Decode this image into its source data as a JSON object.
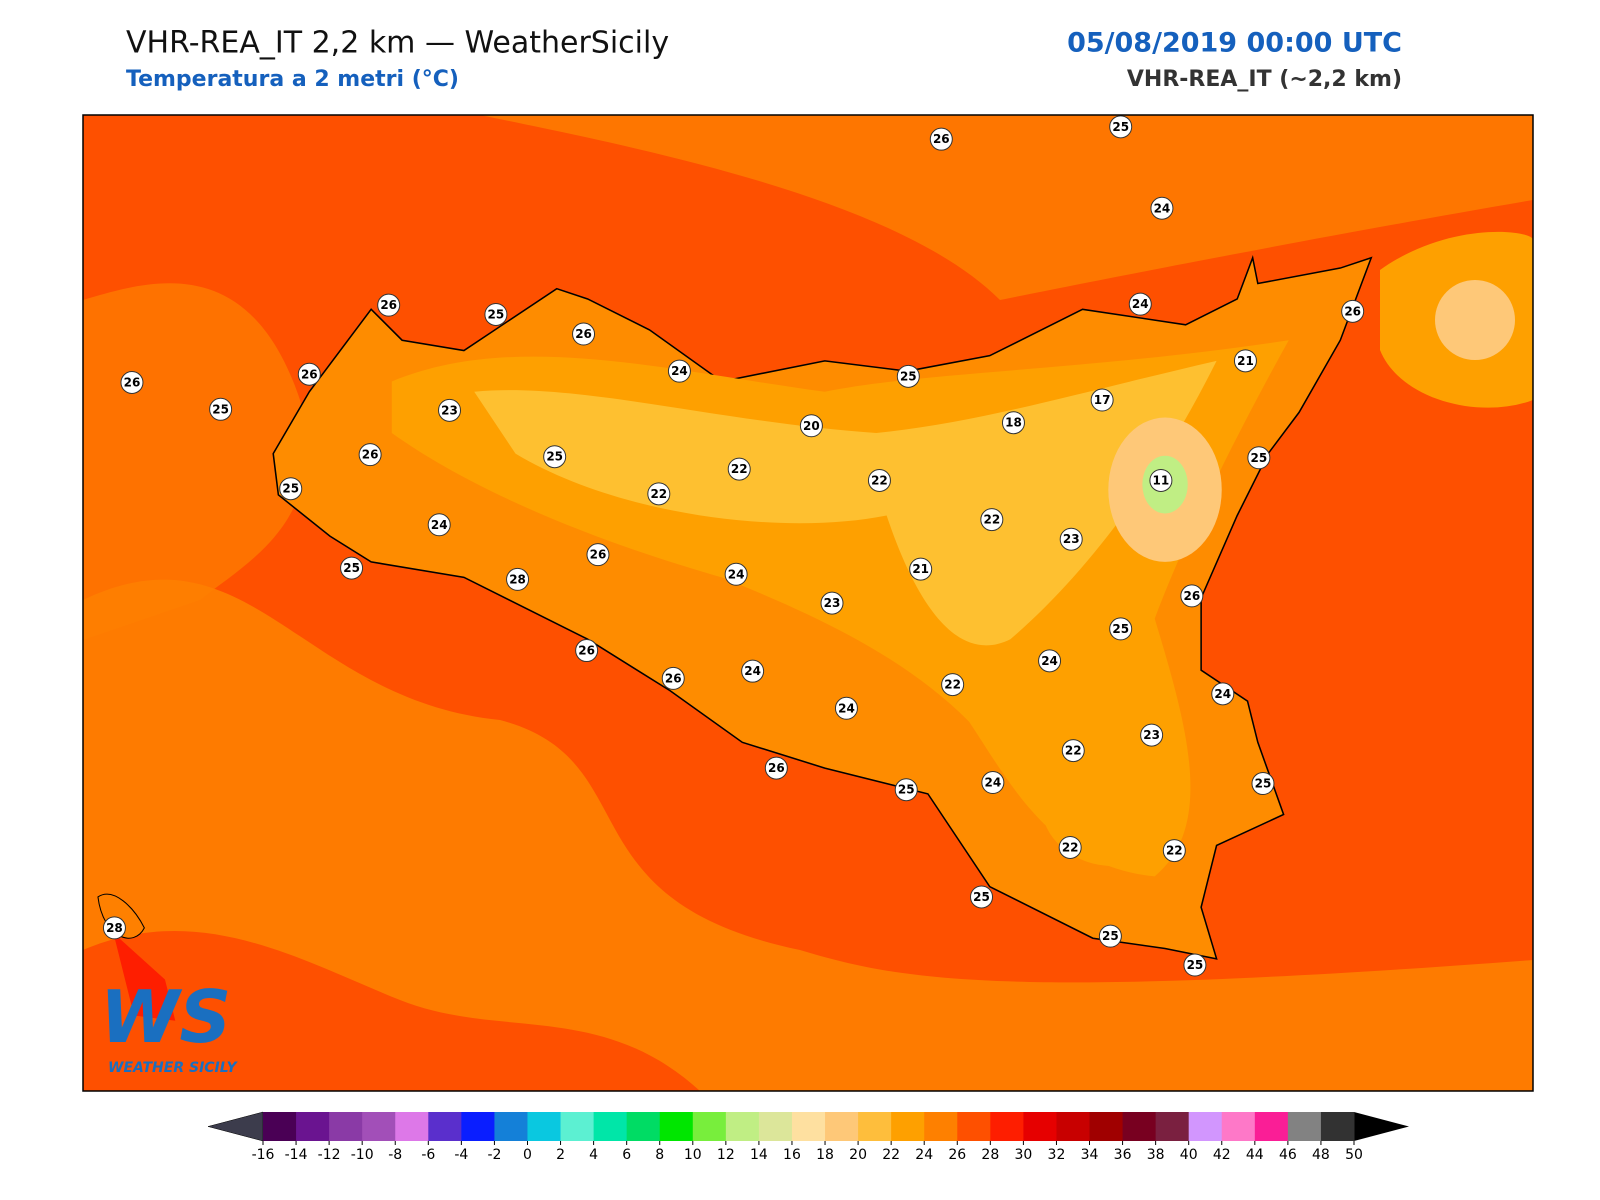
{
  "header": {
    "title": "VHR-REA_IT 2,2 km — WeatherSicily",
    "subtitle": "Temperatura a 2 metri (°C)",
    "date": "05/08/2019 00:00 UTC",
    "model": "VHR-REA_IT (~2,2 km)"
  },
  "stations": [
    {
      "label": "26"
    },
    {
      "label": "25"
    },
    {
      "label": "24"
    },
    {
      "label": "26"
    },
    {
      "label": "25"
    },
    {
      "label": "26"
    },
    {
      "label": "24"
    },
    {
      "label": "25"
    },
    {
      "label": "24"
    },
    {
      "label": "26"
    },
    {
      "label": "21"
    },
    {
      "label": "17"
    },
    {
      "label": "18"
    },
    {
      "label": "20"
    },
    {
      "label": "26"
    },
    {
      "label": "25"
    },
    {
      "label": "26"
    },
    {
      "label": "23"
    },
    {
      "label": "26"
    },
    {
      "label": "25"
    },
    {
      "label": "22"
    },
    {
      "label": "22"
    },
    {
      "label": "22"
    },
    {
      "label": "11"
    },
    {
      "label": "25"
    },
    {
      "label": "25"
    },
    {
      "label": "24"
    },
    {
      "label": "22"
    },
    {
      "label": "23"
    },
    {
      "label": "26"
    },
    {
      "label": "24"
    },
    {
      "label": "21"
    },
    {
      "label": "25"
    },
    {
      "label": "28"
    },
    {
      "label": "23"
    },
    {
      "label": "26"
    },
    {
      "label": "25"
    },
    {
      "label": "24"
    },
    {
      "label": "26"
    },
    {
      "label": "26"
    },
    {
      "label": "24"
    },
    {
      "label": "22"
    },
    {
      "label": "24"
    },
    {
      "label": "24"
    },
    {
      "label": "23"
    },
    {
      "label": "22"
    },
    {
      "label": "26"
    },
    {
      "label": "25"
    },
    {
      "label": "24"
    },
    {
      "label": "25"
    },
    {
      "label": "22"
    },
    {
      "label": "22"
    },
    {
      "label": "25"
    },
    {
      "label": "25"
    },
    {
      "label": "25"
    },
    {
      "label": "28"
    }
  ],
  "colorbar": {
    "ticks": [
      -16,
      -14,
      -12,
      -10,
      -8,
      -6,
      -4,
      -2,
      0,
      2,
      4,
      6,
      8,
      10,
      12,
      14,
      16,
      18,
      20,
      22,
      24,
      26,
      28,
      30,
      32,
      34,
      36,
      38,
      40,
      42,
      44,
      46,
      48,
      50
    ],
    "colors": [
      "#4a0055",
      "#6a1490",
      "#8a3aa6",
      "#a24fb8",
      "#dd78e8",
      "#5a2fcc",
      "#0a1eff",
      "#1480d8",
      "#0ac8e0",
      "#5cf0d2",
      "#00e6a8",
      "#00dc64",
      "#00e600",
      "#78ee3c",
      "#c0ee84",
      "#dce69a",
      "#fee0a0",
      "#fec878",
      "#febe3c",
      "#fea000",
      "#fe8000",
      "#fe5000",
      "#fe1e00",
      "#e60000",
      "#c80000",
      "#a00000",
      "#780020",
      "#7a2040",
      "#d296fe",
      "#fe78c8",
      "#fa1e96",
      "#828282",
      "#323232"
    ]
  },
  "logo": {
    "mark": "WS",
    "text": "WEATHER SICILY"
  }
}
